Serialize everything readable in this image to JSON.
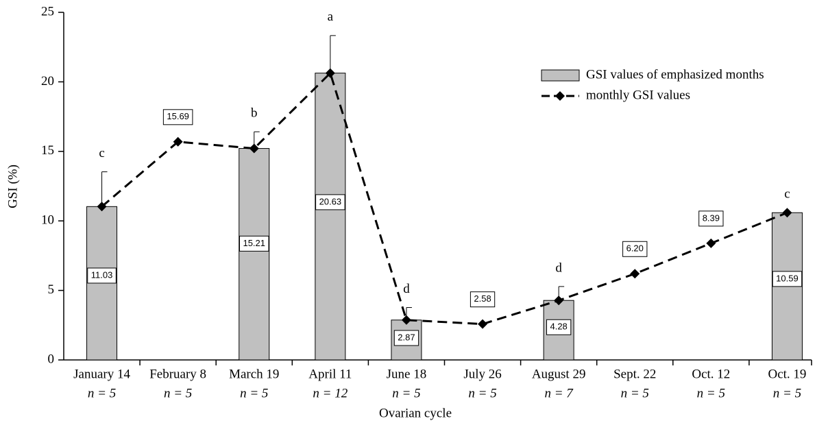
{
  "chart_data": {
    "type": "bar-line",
    "xlabel": "Ovarian cycle",
    "ylabel": "GSI (%)",
    "categories": [
      "January 14",
      "February 8",
      "March 19",
      "April 11",
      "June 18",
      "July 26",
      "August 29",
      "Sept. 22",
      "Oct. 12",
      "Oct. 19"
    ],
    "category_notes": [
      "n = 5",
      "n = 5",
      "n = 5",
      "n = 12",
      "n = 5",
      "n = 5",
      "n = 7",
      "n = 5",
      "n = 5",
      "n = 5"
    ],
    "annotations": [
      "c",
      null,
      "b",
      "a",
      "d",
      null,
      "d",
      null,
      null,
      "c"
    ],
    "series": [
      {
        "name": "GSI values of emphasized months",
        "kind": "bar",
        "color": "#c0c0c0",
        "values": [
          11.03,
          null,
          15.21,
          20.63,
          2.87,
          null,
          4.28,
          null,
          null,
          10.59
        ],
        "errors": [
          2.5,
          null,
          1.2,
          2.7,
          0.9,
          null,
          1.0,
          null,
          null,
          null
        ]
      },
      {
        "name": "monthly GSI values",
        "kind": "line",
        "color": "#000000",
        "values": [
          11.03,
          15.69,
          15.21,
          20.63,
          2.87,
          2.58,
          4.28,
          6.2,
          8.39,
          10.59
        ],
        "value_labels": [
          null,
          "15.69",
          null,
          null,
          null,
          "2.58",
          null,
          "6.20",
          "8.39",
          null
        ]
      }
    ],
    "ylim": [
      0,
      25
    ],
    "yticks": [
      0,
      5,
      10,
      15,
      20,
      25
    ],
    "legend": "top-right"
  }
}
